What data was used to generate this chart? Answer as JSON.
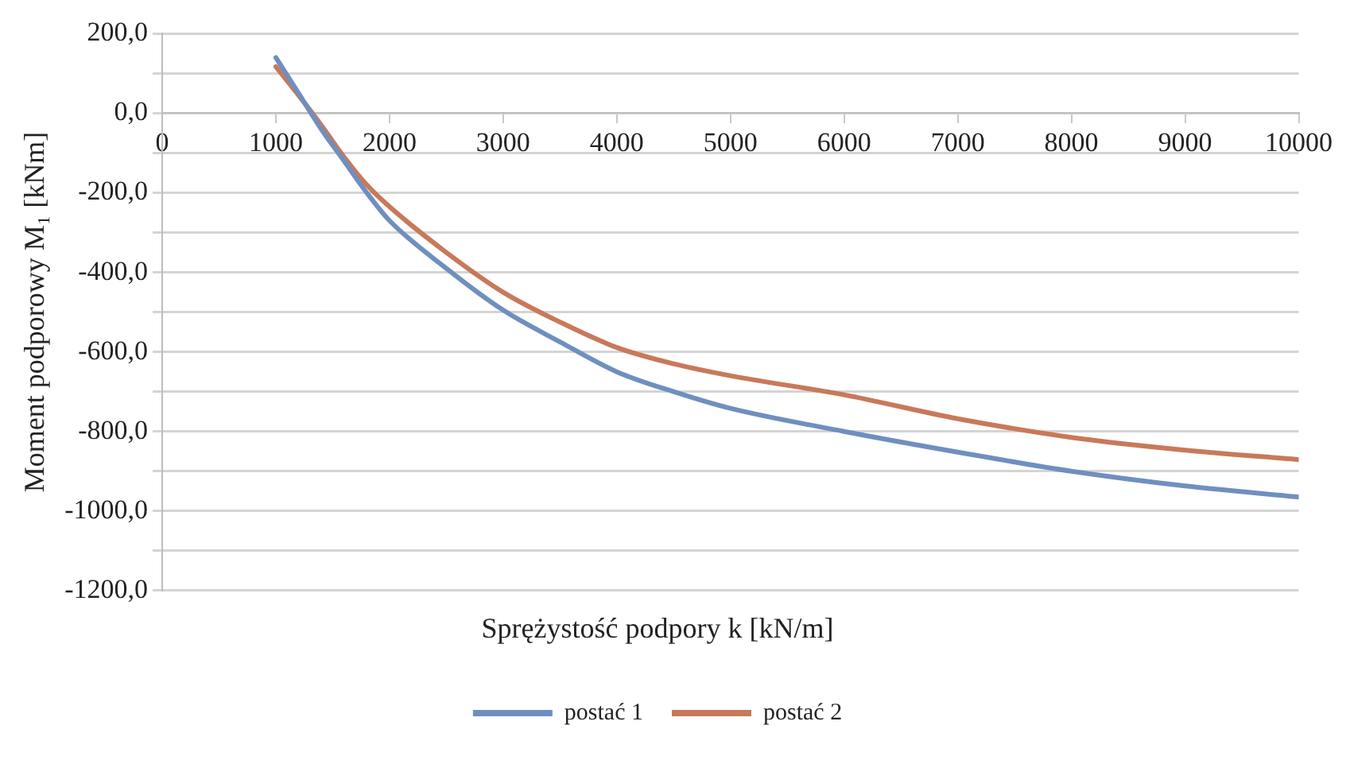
{
  "chart_data": {
    "type": "line",
    "xlabel": "Sprężystość podpory k [kN/m]",
    "ylabel": "Moment podporowy M₁ [kNm]",
    "x": [
      1000,
      1200,
      1400,
      1600,
      1800,
      2000,
      2500,
      3000,
      3500,
      4000,
      4500,
      5000,
      6000,
      7000,
      8000,
      9000,
      10000
    ],
    "series": [
      {
        "name": "postać 1",
        "color": "#6f8fbf",
        "values": [
          140,
          50,
          -40,
          -120,
          -200,
          -270,
          -390,
          -495,
          -575,
          -650,
          -700,
          -742,
          -800,
          -852,
          -900,
          -937,
          -965
        ]
      },
      {
        "name": "postać 2",
        "color": "#c8795a",
        "values": [
          117,
          45,
          -30,
          -110,
          -180,
          -235,
          -350,
          -450,
          -525,
          -589,
          -630,
          -660,
          -708,
          -768,
          -815,
          -847,
          -871
        ]
      }
    ],
    "xlim": [
      0,
      10000
    ],
    "xticks": [
      0,
      1000,
      2000,
      3000,
      4000,
      5000,
      6000,
      7000,
      8000,
      9000,
      10000
    ],
    "ylim": [
      -1200,
      200
    ],
    "yticks": [
      {
        "value": 200,
        "label": "200,0"
      },
      {
        "value": 100,
        "label": null
      },
      {
        "value": 0,
        "label": "0,0"
      },
      {
        "value": -100,
        "label": null
      },
      {
        "value": -200,
        "label": "-200,0"
      },
      {
        "value": -300,
        "label": null
      },
      {
        "value": -400,
        "label": "-400,0"
      },
      {
        "value": -500,
        "label": null
      },
      {
        "value": -600,
        "label": "-600,0"
      },
      {
        "value": -700,
        "label": null
      },
      {
        "value": -800,
        "label": "-800,0"
      },
      {
        "value": -900,
        "label": null
      },
      {
        "value": -1000,
        "label": "-1000,0"
      },
      {
        "value": -1100,
        "label": null
      },
      {
        "value": -1200,
        "label": "-1200,0"
      }
    ],
    "grid": "y",
    "legend": "bottom",
    "marker": "none",
    "line_style": "solid"
  }
}
